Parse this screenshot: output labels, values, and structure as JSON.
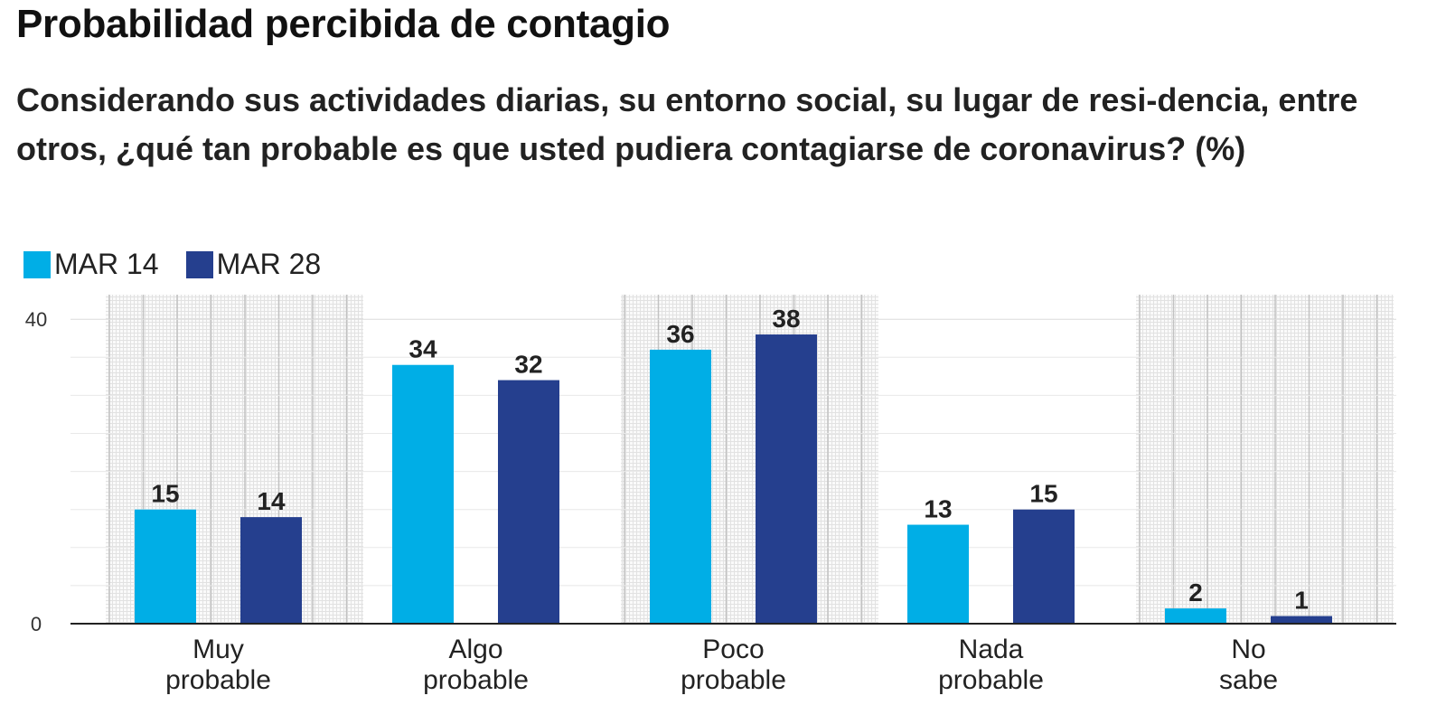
{
  "chart_data": {
    "type": "bar",
    "title": "Probabilidad percibida de contagio",
    "subtitle": "Considerando sus actividades diarias, su entorno social, su lugar de resi-dencia, entre otros, ¿qué tan probable es que usted pudiera contagiarse de coronavirus? (%)",
    "categories": [
      "Muy probable",
      "Algo probable",
      "Poco probable",
      "Nada probable",
      "No sabe"
    ],
    "series": [
      {
        "name": "MAR 14",
        "values": [
          15,
          34,
          36,
          13,
          2
        ],
        "color": "#00aee6"
      },
      {
        "name": "MAR 28",
        "values": [
          14,
          32,
          38,
          15,
          1
        ],
        "color": "#253f8e"
      }
    ],
    "yticks": [
      0,
      40
    ],
    "ylim": [
      0,
      43
    ],
    "grid": true,
    "legend_position": "top-left",
    "xlabel": "",
    "ylabel": ""
  }
}
